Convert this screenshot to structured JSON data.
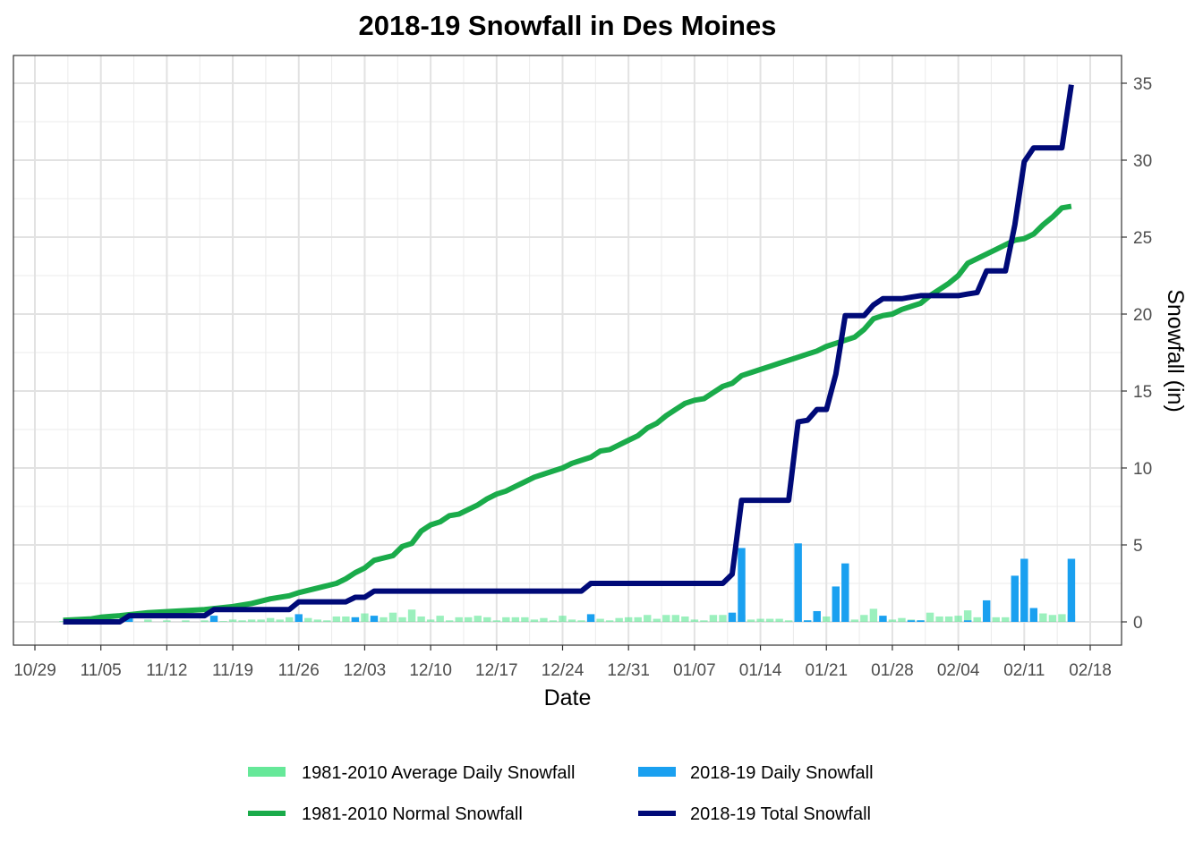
{
  "chart_data": {
    "type": "line",
    "title": "2018-19 Snowfall in Des Moines",
    "xlabel": "Date",
    "ylabel": "Snowfall (in)",
    "x_type": "date",
    "x_ticks": [
      {
        "date": "2018-10-29",
        "label": "10/29"
      },
      {
        "date": "2018-11-05",
        "label": "11/05"
      },
      {
        "date": "2018-11-12",
        "label": "11/12"
      },
      {
        "date": "2018-11-19",
        "label": "11/19"
      },
      {
        "date": "2018-11-26",
        "label": "11/26"
      },
      {
        "date": "2018-12-03",
        "label": "12/03"
      },
      {
        "date": "2018-12-10",
        "label": "12/10"
      },
      {
        "date": "2018-12-17",
        "label": "12/17"
      },
      {
        "date": "2018-12-24",
        "label": "12/24"
      },
      {
        "date": "2018-12-31",
        "label": "12/31"
      },
      {
        "date": "2019-01-07",
        "label": "01/07"
      },
      {
        "date": "2019-01-14",
        "label": "01/14"
      },
      {
        "date": "2019-01-21",
        "label": "01/21"
      },
      {
        "date": "2019-01-28",
        "label": "01/28"
      },
      {
        "date": "2019-02-04",
        "label": "02/04"
      },
      {
        "date": "2019-02-11",
        "label": "02/11"
      },
      {
        "date": "2019-02-18",
        "label": "02/18"
      }
    ],
    "xlim": [
      "2018-10-29",
      "2019-02-18"
    ],
    "ylim": [
      0,
      35
    ],
    "y_ticks": [
      0,
      5,
      10,
      15,
      20,
      25,
      30,
      35
    ],
    "y_axis_position": "right",
    "grid": true,
    "legend_position": "bottom",
    "legend": [
      {
        "label": "1981-2010 Average Daily Snowfall",
        "color": "#66e899",
        "kind": "bar"
      },
      {
        "label": "2018-19 Daily Snowfall",
        "color": "#1aa0f0",
        "kind": "bar"
      },
      {
        "label": "1981-2010 Normal Snowfall",
        "color": "#1aab4a",
        "kind": "line"
      },
      {
        "label": "2018-19 Total Snowfall",
        "color": "#000a78",
        "kind": "line"
      }
    ],
    "series": [
      {
        "name": "1981-2010 Average Daily Snowfall",
        "type": "bar",
        "color": "#66e899",
        "points": [
          [
            "2018-11-01",
            0.05
          ],
          [
            "2018-11-03",
            0.05
          ],
          [
            "2018-11-05",
            0.1
          ],
          [
            "2018-11-06",
            0.1
          ],
          [
            "2018-11-07",
            0.05
          ],
          [
            "2018-11-08",
            0.1
          ],
          [
            "2018-11-10",
            0.15
          ],
          [
            "2018-11-12",
            0.1
          ],
          [
            "2018-11-14",
            0.1
          ],
          [
            "2018-11-16",
            0.1
          ],
          [
            "2018-11-18",
            0.05
          ],
          [
            "2018-11-19",
            0.15
          ],
          [
            "2018-11-20",
            0.1
          ],
          [
            "2018-11-21",
            0.15
          ],
          [
            "2018-11-22",
            0.15
          ],
          [
            "2018-11-23",
            0.25
          ],
          [
            "2018-11-24",
            0.15
          ],
          [
            "2018-11-25",
            0.3
          ],
          [
            "2018-11-26",
            0.15
          ],
          [
            "2018-11-27",
            0.25
          ],
          [
            "2018-11-28",
            0.15
          ],
          [
            "2018-11-29",
            0.1
          ],
          [
            "2018-11-30",
            0.35
          ],
          [
            "2018-12-01",
            0.35
          ],
          [
            "2018-12-02",
            0.3
          ],
          [
            "2018-12-03",
            0.55
          ],
          [
            "2018-12-04",
            0.2
          ],
          [
            "2018-12-05",
            0.3
          ],
          [
            "2018-12-06",
            0.6
          ],
          [
            "2018-12-07",
            0.3
          ],
          [
            "2018-12-08",
            0.8
          ],
          [
            "2018-12-09",
            0.35
          ],
          [
            "2018-12-10",
            0.15
          ],
          [
            "2018-12-11",
            0.4
          ],
          [
            "2018-12-12",
            0.1
          ],
          [
            "2018-12-13",
            0.3
          ],
          [
            "2018-12-14",
            0.3
          ],
          [
            "2018-12-15",
            0.4
          ],
          [
            "2018-12-16",
            0.3
          ],
          [
            "2018-12-17",
            0.1
          ],
          [
            "2018-12-18",
            0.3
          ],
          [
            "2018-12-19",
            0.3
          ],
          [
            "2018-12-20",
            0.3
          ],
          [
            "2018-12-21",
            0.15
          ],
          [
            "2018-12-22",
            0.25
          ],
          [
            "2018-12-23",
            0.1
          ],
          [
            "2018-12-24",
            0.4
          ],
          [
            "2018-12-25",
            0.15
          ],
          [
            "2018-12-26",
            0.1
          ],
          [
            "2018-12-27",
            0.1
          ],
          [
            "2018-12-28",
            0.2
          ],
          [
            "2018-12-29",
            0.1
          ],
          [
            "2018-12-30",
            0.25
          ],
          [
            "2018-12-31",
            0.3
          ],
          [
            "2019-01-01",
            0.3
          ],
          [
            "2019-01-02",
            0.45
          ],
          [
            "2019-01-03",
            0.2
          ],
          [
            "2019-01-04",
            0.45
          ],
          [
            "2019-01-05",
            0.45
          ],
          [
            "2019-01-06",
            0.35
          ],
          [
            "2019-01-07",
            0.15
          ],
          [
            "2019-01-08",
            0.1
          ],
          [
            "2019-01-09",
            0.45
          ],
          [
            "2019-01-10",
            0.45
          ],
          [
            "2019-01-11",
            0.45
          ],
          [
            "2019-01-12",
            0.45
          ],
          [
            "2019-01-13",
            0.15
          ],
          [
            "2019-01-14",
            0.2
          ],
          [
            "2019-01-15",
            0.2
          ],
          [
            "2019-01-16",
            0.2
          ],
          [
            "2019-01-17",
            0.1
          ],
          [
            "2019-01-18",
            0.1
          ],
          [
            "2019-01-19",
            0.1
          ],
          [
            "2019-01-20",
            0.15
          ],
          [
            "2019-01-21",
            0.35
          ],
          [
            "2019-01-22",
            0.1
          ],
          [
            "2019-01-23",
            0.35
          ],
          [
            "2019-01-24",
            0.15
          ],
          [
            "2019-01-25",
            0.45
          ],
          [
            "2019-01-26",
            0.85
          ],
          [
            "2019-01-27",
            0.2
          ],
          [
            "2019-01-28",
            0.15
          ],
          [
            "2019-01-29",
            0.25
          ],
          [
            "2019-01-30",
            0.15
          ],
          [
            "2019-01-31",
            0.1
          ],
          [
            "2019-02-01",
            0.6
          ],
          [
            "2019-02-02",
            0.35
          ],
          [
            "2019-02-03",
            0.35
          ],
          [
            "2019-02-04",
            0.4
          ],
          [
            "2019-02-05",
            0.75
          ],
          [
            "2019-02-06",
            0.3
          ],
          [
            "2019-02-07",
            0.3
          ],
          [
            "2019-02-08",
            0.3
          ],
          [
            "2019-02-09",
            0.3
          ],
          [
            "2019-02-10",
            0.3
          ],
          [
            "2019-02-11",
            0.3
          ],
          [
            "2019-02-12",
            0.45
          ],
          [
            "2019-02-13",
            0.55
          ],
          [
            "2019-02-14",
            0.45
          ],
          [
            "2019-02-15",
            0.5
          ],
          [
            "2019-02-16",
            0.45
          ]
        ]
      },
      {
        "name": "2018-19 Daily Snowfall",
        "type": "bar",
        "color": "#1aa0f0",
        "points": [
          [
            "2018-11-08",
            0.4
          ],
          [
            "2018-11-17",
            0.4
          ],
          [
            "2018-11-26",
            0.5
          ],
          [
            "2018-12-02",
            0.3
          ],
          [
            "2018-12-04",
            0.4
          ],
          [
            "2018-12-27",
            0.5
          ],
          [
            "2019-01-11",
            0.6
          ],
          [
            "2019-01-12",
            4.8
          ],
          [
            "2019-01-18",
            5.1
          ],
          [
            "2019-01-19",
            0.1
          ],
          [
            "2019-01-20",
            0.7
          ],
          [
            "2019-01-22",
            2.3
          ],
          [
            "2019-01-23",
            3.8
          ],
          [
            "2019-01-27",
            0.4
          ],
          [
            "2019-01-30",
            0.1
          ],
          [
            "2019-01-31",
            0.1
          ],
          [
            "2019-02-05",
            0.1
          ],
          [
            "2019-02-07",
            1.4
          ],
          [
            "2019-02-10",
            3.0
          ],
          [
            "2019-02-11",
            4.1
          ],
          [
            "2019-02-12",
            0.9
          ],
          [
            "2019-02-16",
            4.1
          ]
        ]
      },
      {
        "name": "1981-2010 Normal Snowfall",
        "type": "line",
        "color": "#1aab4a",
        "points": [
          [
            "2018-11-01",
            0.1
          ],
          [
            "2018-11-04",
            0.2
          ],
          [
            "2018-11-05",
            0.3
          ],
          [
            "2018-11-07",
            0.4
          ],
          [
            "2018-11-10",
            0.6
          ],
          [
            "2018-11-13",
            0.7
          ],
          [
            "2018-11-16",
            0.8
          ],
          [
            "2018-11-19",
            1.0
          ],
          [
            "2018-11-21",
            1.2
          ],
          [
            "2018-11-23",
            1.5
          ],
          [
            "2018-11-25",
            1.7
          ],
          [
            "2018-11-26",
            1.9
          ],
          [
            "2018-11-28",
            2.2
          ],
          [
            "2018-11-30",
            2.5
          ],
          [
            "2018-12-01",
            2.8
          ],
          [
            "2018-12-02",
            3.2
          ],
          [
            "2018-12-03",
            3.5
          ],
          [
            "2018-12-04",
            4.0
          ],
          [
            "2018-12-06",
            4.3
          ],
          [
            "2018-12-07",
            4.9
          ],
          [
            "2018-12-08",
            5.1
          ],
          [
            "2018-12-09",
            5.9
          ],
          [
            "2018-12-10",
            6.3
          ],
          [
            "2018-12-11",
            6.5
          ],
          [
            "2018-12-12",
            6.9
          ],
          [
            "2018-12-13",
            7.0
          ],
          [
            "2018-12-14",
            7.3
          ],
          [
            "2018-12-15",
            7.6
          ],
          [
            "2018-12-16",
            8.0
          ],
          [
            "2018-12-17",
            8.3
          ],
          [
            "2018-12-18",
            8.5
          ],
          [
            "2018-12-19",
            8.8
          ],
          [
            "2018-12-20",
            9.1
          ],
          [
            "2018-12-21",
            9.4
          ],
          [
            "2018-12-22",
            9.6
          ],
          [
            "2018-12-23",
            9.8
          ],
          [
            "2018-12-24",
            10.0
          ],
          [
            "2018-12-25",
            10.3
          ],
          [
            "2018-12-26",
            10.5
          ],
          [
            "2018-12-27",
            10.7
          ],
          [
            "2018-12-28",
            11.1
          ],
          [
            "2018-12-29",
            11.2
          ],
          [
            "2018-12-30",
            11.5
          ],
          [
            "2018-12-31",
            11.8
          ],
          [
            "2019-01-01",
            12.1
          ],
          [
            "2019-01-02",
            12.6
          ],
          [
            "2019-01-03",
            12.9
          ],
          [
            "2019-01-04",
            13.4
          ],
          [
            "2019-01-05",
            13.8
          ],
          [
            "2019-01-06",
            14.2
          ],
          [
            "2019-01-07",
            14.4
          ],
          [
            "2019-01-08",
            14.5
          ],
          [
            "2019-01-09",
            14.9
          ],
          [
            "2019-01-10",
            15.3
          ],
          [
            "2019-01-11",
            15.5
          ],
          [
            "2019-01-12",
            16.0
          ],
          [
            "2019-01-13",
            16.2
          ],
          [
            "2019-01-14",
            16.4
          ],
          [
            "2019-01-15",
            16.6
          ],
          [
            "2019-01-16",
            16.8
          ],
          [
            "2019-01-17",
            17.0
          ],
          [
            "2019-01-18",
            17.2
          ],
          [
            "2019-01-19",
            17.4
          ],
          [
            "2019-01-20",
            17.6
          ],
          [
            "2019-01-21",
            17.9
          ],
          [
            "2019-01-22",
            18.1
          ],
          [
            "2019-01-23",
            18.3
          ],
          [
            "2019-01-24",
            18.5
          ],
          [
            "2019-01-25",
            19.0
          ],
          [
            "2019-01-26",
            19.7
          ],
          [
            "2019-01-27",
            19.9
          ],
          [
            "2019-01-28",
            20.0
          ],
          [
            "2019-01-29",
            20.3
          ],
          [
            "2019-01-30",
            20.5
          ],
          [
            "2019-01-31",
            20.7
          ],
          [
            "2019-02-01",
            21.2
          ],
          [
            "2019-02-02",
            21.6
          ],
          [
            "2019-02-03",
            22.0
          ],
          [
            "2019-02-04",
            22.5
          ],
          [
            "2019-02-05",
            23.3
          ],
          [
            "2019-02-06",
            23.6
          ],
          [
            "2019-02-07",
            23.9
          ],
          [
            "2019-02-08",
            24.2
          ],
          [
            "2019-02-09",
            24.5
          ],
          [
            "2019-02-10",
            24.8
          ],
          [
            "2019-02-11",
            24.9
          ],
          [
            "2019-02-12",
            25.2
          ],
          [
            "2019-02-13",
            25.8
          ],
          [
            "2019-02-14",
            26.3
          ],
          [
            "2019-02-15",
            26.9
          ],
          [
            "2019-02-16",
            27.0
          ]
        ]
      },
      {
        "name": "2018-19 Total Snowfall",
        "type": "line",
        "color": "#000a78",
        "points": [
          [
            "2018-11-01",
            0
          ],
          [
            "2018-11-07",
            0
          ],
          [
            "2018-11-08",
            0.4
          ],
          [
            "2018-11-16",
            0.4
          ],
          [
            "2018-11-17",
            0.8
          ],
          [
            "2018-11-25",
            0.8
          ],
          [
            "2018-11-26",
            1.3
          ],
          [
            "2018-12-01",
            1.3
          ],
          [
            "2018-12-02",
            1.6
          ],
          [
            "2018-12-03",
            1.6
          ],
          [
            "2018-12-04",
            2.0
          ],
          [
            "2018-12-26",
            2.0
          ],
          [
            "2018-12-27",
            2.5
          ],
          [
            "2019-01-10",
            2.5
          ],
          [
            "2019-01-11",
            3.1
          ],
          [
            "2019-01-12",
            7.9
          ],
          [
            "2019-01-17",
            7.9
          ],
          [
            "2019-01-18",
            13.0
          ],
          [
            "2019-01-19",
            13.1
          ],
          [
            "2019-01-20",
            13.8
          ],
          [
            "2019-01-21",
            13.8
          ],
          [
            "2019-01-22",
            16.1
          ],
          [
            "2019-01-23",
            19.9
          ],
          [
            "2019-01-25",
            19.9
          ],
          [
            "2019-01-26",
            20.6
          ],
          [
            "2019-01-27",
            21.0
          ],
          [
            "2019-01-29",
            21.0
          ],
          [
            "2019-01-30",
            21.1
          ],
          [
            "2019-01-31",
            21.2
          ],
          [
            "2019-02-04",
            21.2
          ],
          [
            "2019-02-05",
            21.3
          ],
          [
            "2019-02-06",
            21.4
          ],
          [
            "2019-02-07",
            22.8
          ],
          [
            "2019-02-09",
            22.8
          ],
          [
            "2019-02-10",
            25.8
          ],
          [
            "2019-02-11",
            29.9
          ],
          [
            "2019-02-12",
            30.8
          ],
          [
            "2019-02-15",
            30.8
          ],
          [
            "2019-02-16",
            34.9
          ]
        ]
      }
    ]
  }
}
